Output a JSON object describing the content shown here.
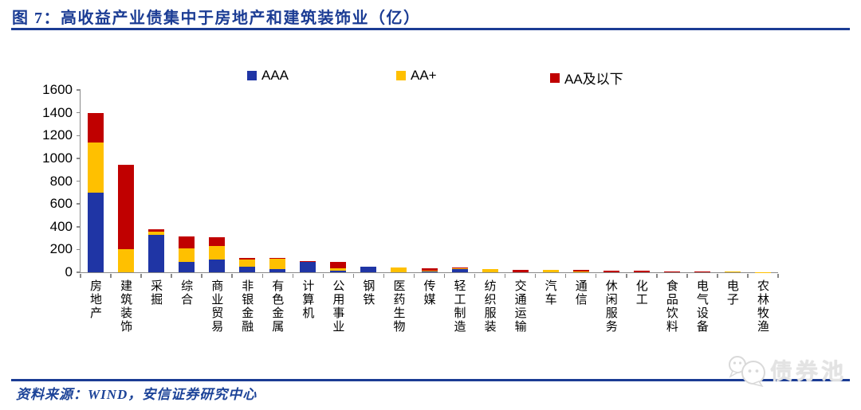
{
  "figure": {
    "title": "图 7：高收益产业债集中于房地产和建筑装饰业（亿）",
    "source": "资料来源：WIND，安信证券研究中心",
    "watermark": "债券池"
  },
  "colors": {
    "aaa_blue": "#1f35a5",
    "aa_plus_yellow": "#ffc000",
    "aa_below_red": "#c00000",
    "heading_blue": "#1b3c94",
    "axis_gray": "#898989"
  },
  "chart_data": {
    "type": "bar",
    "stacked": true,
    "title": "高收益产业债集中于房地产和建筑装饰业（亿）",
    "unit": "亿",
    "ylim": [
      0,
      1600
    ],
    "ytick_step": 200,
    "grid": false,
    "legend_position": "top",
    "legend": [
      "AAA",
      "AA+",
      "AA及以下"
    ],
    "categories": [
      "房地产",
      "建筑装饰",
      "采掘",
      "综合",
      "商业贸易",
      "非银金融",
      "有色金属",
      "计算机",
      "公用事业",
      "钢铁",
      "医药生物",
      "传媒",
      "轻工制造",
      "纺织服装",
      "交通运输",
      "汽车",
      "通信",
      "休闲服务",
      "化工",
      "食品饮料",
      "电气设备",
      "电子",
      "农林牧渔"
    ],
    "series": [
      {
        "name": "AAA",
        "color": "#1f35a5",
        "values": [
          700,
          0,
          330,
          90,
          110,
          50,
          30,
          95,
          15,
          50,
          0,
          10,
          30,
          0,
          0,
          0,
          0,
          0,
          0,
          0,
          0,
          0,
          0
        ]
      },
      {
        "name": "AA+",
        "color": "#ffc000",
        "values": [
          440,
          200,
          25,
          120,
          120,
          60,
          90,
          0,
          20,
          0,
          40,
          5,
          5,
          25,
          0,
          20,
          10,
          0,
          0,
          0,
          0,
          5,
          3
        ]
      },
      {
        "name": "AA及以下",
        "color": "#c00000",
        "values": [
          260,
          740,
          25,
          105,
          80,
          15,
          5,
          5,
          55,
          0,
          0,
          20,
          5,
          0,
          20,
          0,
          8,
          12,
          12,
          10,
          7,
          0,
          0
        ]
      }
    ]
  }
}
